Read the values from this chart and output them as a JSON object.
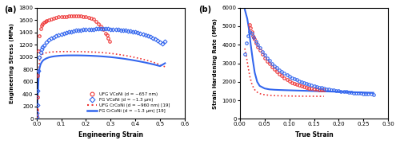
{
  "fig_width": 5.0,
  "fig_height": 1.81,
  "dpi": 100,
  "panel_a": {
    "label": "(a)",
    "xlabel": "Engineering Strain",
    "ylabel": "Engineering Stress\n(MPa)",
    "xlim": [
      0.0,
      0.6
    ],
    "ylim": [
      0,
      1800
    ],
    "yticks": [
      0,
      200,
      400,
      600,
      800,
      1000,
      1200,
      1400,
      1600,
      1800
    ],
    "xticks": [
      0.0,
      0.1,
      0.2,
      0.3,
      0.4,
      0.5,
      0.6
    ],
    "UFG_VCoNi": {
      "color": "#EE3333",
      "marker": "o",
      "markersize": 2.5,
      "markerspacing": 3,
      "x": [
        0.001,
        0.002,
        0.003,
        0.005,
        0.008,
        0.012,
        0.016,
        0.02,
        0.025,
        0.03,
        0.035,
        0.04,
        0.05,
        0.06,
        0.07,
        0.08,
        0.09,
        0.1,
        0.11,
        0.12,
        0.13,
        0.14,
        0.15,
        0.16,
        0.17,
        0.18,
        0.19,
        0.2,
        0.21,
        0.22,
        0.23,
        0.24,
        0.25,
        0.26,
        0.27,
        0.28,
        0.285,
        0.29,
        0.295
      ],
      "y": [
        50,
        150,
        350,
        700,
        1100,
        1350,
        1460,
        1510,
        1545,
        1565,
        1580,
        1590,
        1605,
        1620,
        1632,
        1643,
        1650,
        1655,
        1658,
        1660,
        1662,
        1663,
        1664,
        1665,
        1665,
        1664,
        1660,
        1655,
        1645,
        1630,
        1610,
        1580,
        1545,
        1500,
        1450,
        1390,
        1360,
        1310,
        1260
      ]
    },
    "FG_VCoNi": {
      "color": "#3366EE",
      "marker": "D",
      "markersize": 2.5,
      "markerspacing": 3,
      "x": [
        0.001,
        0.002,
        0.003,
        0.005,
        0.008,
        0.012,
        0.016,
        0.02,
        0.025,
        0.03,
        0.04,
        0.05,
        0.06,
        0.07,
        0.08,
        0.09,
        0.1,
        0.11,
        0.12,
        0.13,
        0.14,
        0.15,
        0.16,
        0.17,
        0.18,
        0.19,
        0.2,
        0.21,
        0.22,
        0.23,
        0.24,
        0.25,
        0.26,
        0.27,
        0.28,
        0.29,
        0.3,
        0.31,
        0.32,
        0.33,
        0.34,
        0.35,
        0.36,
        0.37,
        0.38,
        0.39,
        0.4,
        0.41,
        0.42,
        0.43,
        0.44,
        0.45,
        0.46,
        0.47,
        0.48,
        0.49,
        0.5,
        0.51,
        0.52
      ],
      "y": [
        30,
        100,
        220,
        450,
        780,
        1000,
        1080,
        1120,
        1160,
        1195,
        1240,
        1275,
        1305,
        1325,
        1345,
        1360,
        1375,
        1388,
        1398,
        1408,
        1416,
        1423,
        1430,
        1436,
        1441,
        1445,
        1449,
        1451,
        1453,
        1454,
        1455,
        1456,
        1457,
        1457,
        1456,
        1455,
        1453,
        1450,
        1447,
        1444,
        1441,
        1437,
        1433,
        1428,
        1422,
        1415,
        1408,
        1399,
        1388,
        1376,
        1362,
        1346,
        1328,
        1308,
        1288,
        1265,
        1240,
        1210,
        1250
      ]
    },
    "UFG_CrCoNi": {
      "color": "#EE3333",
      "linestyle": "dotted",
      "linewidth": 1.2,
      "x": [
        0.001,
        0.002,
        0.003,
        0.005,
        0.008,
        0.012,
        0.016,
        0.02,
        0.025,
        0.03,
        0.04,
        0.05,
        0.06,
        0.07,
        0.08,
        0.09,
        0.1,
        0.12,
        0.14,
        0.16,
        0.18,
        0.2,
        0.22,
        0.24,
        0.26,
        0.28,
        0.3,
        0.32,
        0.34,
        0.36,
        0.38,
        0.4,
        0.42,
        0.44,
        0.46,
        0.48,
        0.5,
        0.52
      ],
      "y": [
        30,
        100,
        250,
        500,
        780,
        940,
        1000,
        1030,
        1050,
        1060,
        1070,
        1078,
        1082,
        1085,
        1087,
        1088,
        1089,
        1090,
        1090,
        1089,
        1088,
        1086,
        1083,
        1080,
        1075,
        1068,
        1060,
        1050,
        1038,
        1025,
        1010,
        993,
        975,
        955,
        932,
        906,
        876,
        843
      ]
    },
    "FG_CrCoNi": {
      "color": "#3366EE",
      "linestyle": "solid",
      "linewidth": 1.5,
      "x": [
        0.001,
        0.002,
        0.003,
        0.005,
        0.008,
        0.012,
        0.016,
        0.02,
        0.025,
        0.03,
        0.04,
        0.05,
        0.06,
        0.07,
        0.08,
        0.09,
        0.1,
        0.12,
        0.14,
        0.16,
        0.18,
        0.2,
        0.22,
        0.24,
        0.26,
        0.28,
        0.3,
        0.32,
        0.34,
        0.36,
        0.38,
        0.4,
        0.42,
        0.44,
        0.46,
        0.48,
        0.5,
        0.52
      ],
      "y": [
        25,
        80,
        190,
        390,
        650,
        820,
        880,
        912,
        940,
        958,
        980,
        995,
        1005,
        1012,
        1017,
        1021,
        1024,
        1027,
        1028,
        1028,
        1027,
        1025,
        1022,
        1018,
        1013,
        1007,
        1000,
        991,
        981,
        970,
        957,
        943,
        928,
        912,
        894,
        875,
        854,
        901
      ]
    },
    "legend": {
      "UFG_VCoNi": "UFG VCoNi (d = ~657 nm)",
      "FG_VCoNi": "FG VCoNi (d = ~1.3 μm)",
      "UFG_CrCoNi": "UFG CrCoNi (d = ~960 nm) [19]",
      "FG_CrCoNi": "FG CrCoNi (d = ~1.3 μm) [19]"
    }
  },
  "panel_b": {
    "label": "(b)",
    "xlabel": "True Strain",
    "ylabel": "Strain Hardening Rate\n(MPa)",
    "xlim": [
      0.0,
      0.3
    ],
    "ylim": [
      0,
      6000
    ],
    "yticks": [
      0,
      1000,
      2000,
      3000,
      4000,
      5000,
      6000
    ],
    "xticks": [
      0.0,
      0.05,
      0.1,
      0.15,
      0.2,
      0.25,
      0.3
    ],
    "UFG_VCoNi": {
      "color": "#EE3333",
      "marker": "o",
      "markersize": 2.5,
      "x": [
        0.02,
        0.022,
        0.024,
        0.026,
        0.028,
        0.03,
        0.033,
        0.036,
        0.04,
        0.045,
        0.05,
        0.055,
        0.06,
        0.065,
        0.07,
        0.075,
        0.08,
        0.085,
        0.09,
        0.095,
        0.1,
        0.105,
        0.11,
        0.115,
        0.12,
        0.125,
        0.13,
        0.135,
        0.14,
        0.145,
        0.15,
        0.155,
        0.16,
        0.165,
        0.17
      ],
      "y": [
        5100,
        4900,
        4700,
        4500,
        4380,
        4300,
        4100,
        3900,
        3700,
        3480,
        3300,
        3120,
        2960,
        2810,
        2670,
        2540,
        2420,
        2320,
        2220,
        2130,
        2040,
        1960,
        1900,
        1850,
        1800,
        1760,
        1720,
        1690,
        1660,
        1640,
        1620,
        1600,
        1580,
        1565,
        1550
      ]
    },
    "FG_VCoNi": {
      "color": "#3366EE",
      "marker": "o",
      "markersize": 2.5,
      "x": [
        0.01,
        0.013,
        0.016,
        0.02,
        0.024,
        0.028,
        0.032,
        0.036,
        0.04,
        0.045,
        0.05,
        0.055,
        0.06,
        0.065,
        0.07,
        0.075,
        0.08,
        0.085,
        0.09,
        0.095,
        0.1,
        0.105,
        0.11,
        0.115,
        0.12,
        0.125,
        0.13,
        0.135,
        0.14,
        0.145,
        0.15,
        0.155,
        0.16,
        0.165,
        0.17,
        0.175,
        0.18,
        0.185,
        0.19,
        0.195,
        0.2,
        0.205,
        0.21,
        0.215,
        0.22,
        0.225,
        0.23,
        0.235,
        0.24,
        0.245,
        0.25,
        0.255,
        0.26,
        0.265,
        0.27
      ],
      "y": [
        3500,
        4100,
        4500,
        4700,
        4600,
        4400,
        4200,
        4000,
        3820,
        3620,
        3450,
        3290,
        3140,
        3000,
        2870,
        2750,
        2640,
        2540,
        2450,
        2370,
        2290,
        2220,
        2160,
        2100,
        2050,
        2000,
        1950,
        1905,
        1860,
        1820,
        1780,
        1745,
        1712,
        1680,
        1652,
        1625,
        1600,
        1575,
        1552,
        1530,
        1510,
        1491,
        1473,
        1456,
        1440,
        1425,
        1410,
        1396,
        1383,
        1371,
        1359,
        1348,
        1337,
        1327,
        1318
      ]
    },
    "UFG_CrCoNi": {
      "color": "#EE3333",
      "linestyle": "dotted",
      "linewidth": 1.2,
      "x": [
        0.01,
        0.013,
        0.016,
        0.02,
        0.024,
        0.028,
        0.032,
        0.036,
        0.04,
        0.05,
        0.06,
        0.07,
        0.08,
        0.09,
        0.1,
        0.11,
        0.12,
        0.13,
        0.14,
        0.15,
        0.16,
        0.17
      ],
      "y": [
        3800,
        3400,
        2900,
        2300,
        1900,
        1650,
        1500,
        1420,
        1360,
        1300,
        1270,
        1255,
        1245,
        1238,
        1232,
        1228,
        1225,
        1222,
        1220,
        1218,
        1216,
        1214
      ]
    },
    "FG_CrCoNi": {
      "color": "#3366EE",
      "linestyle": "solid",
      "linewidth": 1.5,
      "x": [
        0.01,
        0.012,
        0.015,
        0.018,
        0.022,
        0.026,
        0.03,
        0.035,
        0.04,
        0.05,
        0.06,
        0.07,
        0.08,
        0.09,
        0.1,
        0.11,
        0.12,
        0.13,
        0.14,
        0.15,
        0.16,
        0.165,
        0.17,
        0.175,
        0.18,
        0.185,
        0.19,
        0.2,
        0.21,
        0.22,
        0.23,
        0.24,
        0.25,
        0.26,
        0.27
      ],
      "y": [
        5900,
        5700,
        5400,
        4900,
        4000,
        3200,
        2500,
        2000,
        1780,
        1640,
        1590,
        1570,
        1558,
        1548,
        1540,
        1532,
        1524,
        1516,
        1508,
        1500,
        1492,
        1488,
        1484,
        1480,
        1476,
        1472,
        1468,
        1460,
        1452,
        1445,
        1437,
        1430,
        1422,
        1414,
        1406
      ]
    }
  },
  "colors": {
    "red": "#EE3333",
    "blue": "#3366EE"
  }
}
